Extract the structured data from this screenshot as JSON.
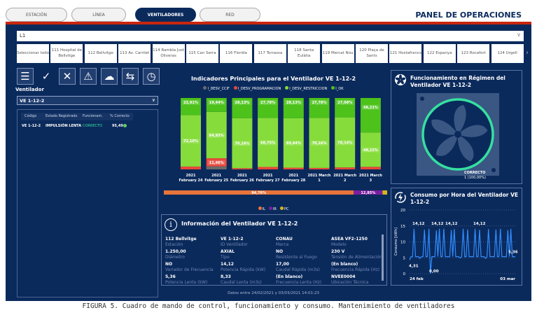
{
  "tabs": [
    {
      "label": "ESTACIÓN"
    },
    {
      "label": "LÍNEA"
    },
    {
      "label": "VENTILADORES",
      "active": true
    },
    {
      "label": "RED"
    }
  ],
  "header": {
    "title": "PANEL DE OPERACIONES"
  },
  "line_select": {
    "value": "L1"
  },
  "stations": [
    "Seleccionar todo",
    "111 Hospital de Bellvitge",
    "112 Bellvitge",
    "113 Av. Carrilet",
    "114 Rambla Just Oliveras",
    "115 Can Serra",
    "116 Florida",
    "117 Torrassa",
    "118 Santa Eulàlia",
    "119 Mercat Nou",
    "120 Plaça de Sants",
    "121 Hostafrancs",
    "122 Espanya",
    "123 Rocafort",
    "124 Urgell"
  ],
  "toolbar_icons": [
    "list-icon",
    "check-icon",
    "x-icon",
    "warning-icon",
    "cloud-off-icon",
    "signpost-icon",
    "clock-icon"
  ],
  "ventilador": {
    "label": "Ventilador",
    "selected": "VE 1-12-2"
  },
  "table": {
    "headers": [
      "Código",
      "Estado Registrado",
      "Funcionam.",
      "% Correcto"
    ],
    "rows": [
      {
        "codigo": "VE 1-12-2",
        "estado": "IMPULSIÓN LENTA",
        "func": "CORRECTO",
        "pct": "95,49"
      }
    ]
  },
  "colors": {
    "navy": "#0b2a5c",
    "red": "#c8260e",
    "ok": "#4cc21a",
    "restr": "#86dc3a",
    "prog": "#e8483a",
    "ccif": "#6b6b6b",
    "il": "#e8743b",
    "ir": "#7a1fa0",
    "pc": "#d6b51c",
    "teal": "#35e0a0",
    "line": "#2f8cff"
  },
  "chart_data": [
    {
      "type": "bar",
      "stacked": true,
      "title": "Indicadores Principales para el Ventilador VE 1-12-2",
      "legend": [
        "I_DESV_CCIF",
        "I_DESV_PROGRAMACION",
        "I_DESV_RESTRICCION",
        "I_OK"
      ],
      "legend_position": "top",
      "categories": [
        "2021 February 24",
        "2021 February 25",
        "2021 February 26",
        "2021 February 27",
        "2021 February 28",
        "2021 March 1",
        "2021 March 2",
        "2021 March 3"
      ],
      "series": [
        {
          "name": "I_DESV_CCIF",
          "values": [
            0,
            4.17,
            0,
            0,
            0,
            0,
            0,
            0
          ]
        },
        {
          "name": "I_DESV_PROGRAMACION",
          "values": [
            3.99,
            11.46,
            1.71,
            3.47,
            2.43,
            2.06,
            2.78,
            3.58
          ]
        },
        {
          "name": "I_DESV_RESTRICCION",
          "values": [
            72.1,
            64.93,
            70.16,
            68.75,
            69.44,
            70.16,
            70.14,
            48.21
          ]
        },
        {
          "name": "I_OK",
          "values": [
            23.91,
            19.44,
            28.13,
            27.78,
            28.13,
            27.78,
            27.08,
            48.21
          ]
        }
      ],
      "labels": [
        [
          "",
          "",
          "72,10%",
          "23,91%"
        ],
        [
          "",
          "11,46%",
          "64,93%",
          "19,44%"
        ],
        [
          "",
          "",
          "70,16%",
          "28,13%"
        ],
        [
          "",
          "",
          "68,75%",
          "27,78%"
        ],
        [
          "",
          "",
          "69,44%",
          "28,13%"
        ],
        [
          "",
          "",
          "70,16%",
          "27,78%"
        ],
        [
          "",
          "",
          "70,14%",
          "27,08%"
        ],
        [
          "",
          "",
          "48,21%",
          "48,21%"
        ]
      ]
    },
    {
      "type": "bar",
      "orientation": "horizontal",
      "stacked": true,
      "legend": [
        "IL",
        "IR",
        "PC"
      ],
      "legend_position": "bottom",
      "values": [
        84.76,
        12.85,
        2.39
      ],
      "labels": [
        "84,76%",
        "12,85%",
        ""
      ]
    },
    {
      "type": "line",
      "title": "Consumo por Hora del Ventilador VE 1-12-2",
      "ylabel": "Consumo [kWh]",
      "ylim": [
        0,
        20
      ],
      "yticks": [
        0,
        5,
        10,
        15,
        20
      ],
      "xlabels": [
        "24 feb",
        "03 mar"
      ],
      "values": [
        4.31,
        5.36,
        5.36,
        14.12,
        5.36,
        5.36,
        5.36,
        4.8,
        5.36,
        5.36,
        13.8,
        5.36,
        5.36,
        14.12,
        0.0,
        5.36,
        5.36,
        5.36,
        13.6,
        5.36,
        14.12,
        5.36,
        5.36,
        14.12,
        5.36,
        5.36,
        5.36,
        5.36,
        13.7,
        5.36,
        14.0,
        5.36,
        5.36,
        5.36,
        4.9,
        5.36,
        14.12,
        5.36,
        5.36,
        13.9,
        5.36,
        5.36,
        5.36,
        5.36,
        14.12,
        5.36,
        5.36,
        13.8,
        5.36,
        5.36,
        5.36,
        4.8,
        5.36,
        14.0,
        5.36,
        5.36,
        5.36,
        5.36,
        13.9,
        5.36,
        5.36,
        14.1,
        5.36,
        5.36,
        5.36,
        5.36,
        13.7,
        5.36,
        14.1,
        5.36,
        5.36,
        5.36
      ],
      "annotations": [
        "14,12",
        "14,12",
        "14,12",
        "14,12",
        "4,31",
        "0,00",
        "5,36"
      ]
    }
  ],
  "fan_panel": {
    "title": "Funcionamiento en Régimen del Ventilador VE 1-12-2",
    "status": "CORRECTO",
    "count": "1 (100,00%)"
  },
  "info": {
    "title": "Información del Ventilador VE 1-12-2",
    "cells": [
      [
        "112 Bellvitge",
        "Estación"
      ],
      [
        "VE 1-12-2",
        "ID Ventilador"
      ],
      [
        "CONAU",
        "Marca"
      ],
      [
        "ASEA VF2-1250",
        "Modelo"
      ],
      [
        "1.250,00",
        "Diámetro"
      ],
      [
        "AXIAL",
        "Tipo"
      ],
      [
        "NO",
        "Resistente al Fuego"
      ],
      [
        "230 V",
        "Tensión de Alimentación"
      ],
      [
        "NO",
        "Variador de Frecuencia"
      ],
      [
        "14,12",
        "Potencia Rápida (kW)"
      ],
      [
        "17,00",
        "Caudal Rápida (m3s)"
      ],
      [
        "(En blanco)",
        "Frecuencia Rápida (Hz)"
      ],
      [
        "5,36",
        "Potencia Lenta (kW)"
      ],
      [
        "8,33",
        "Caudal Lenta (m3s)"
      ],
      [
        "(En blanco)",
        "Frecuencia Lenta (Hz)"
      ],
      [
        "NVEE0004",
        "Ubicación Técnica"
      ]
    ]
  },
  "footer": {
    "dates": "Datos entre 24/02/2021 y 03/03/2021 14:01:23"
  },
  "caption": "FIGURA 5. Cuadro de mando de control, funcionamiento y consumo. Mantenimiento de ventiladores"
}
